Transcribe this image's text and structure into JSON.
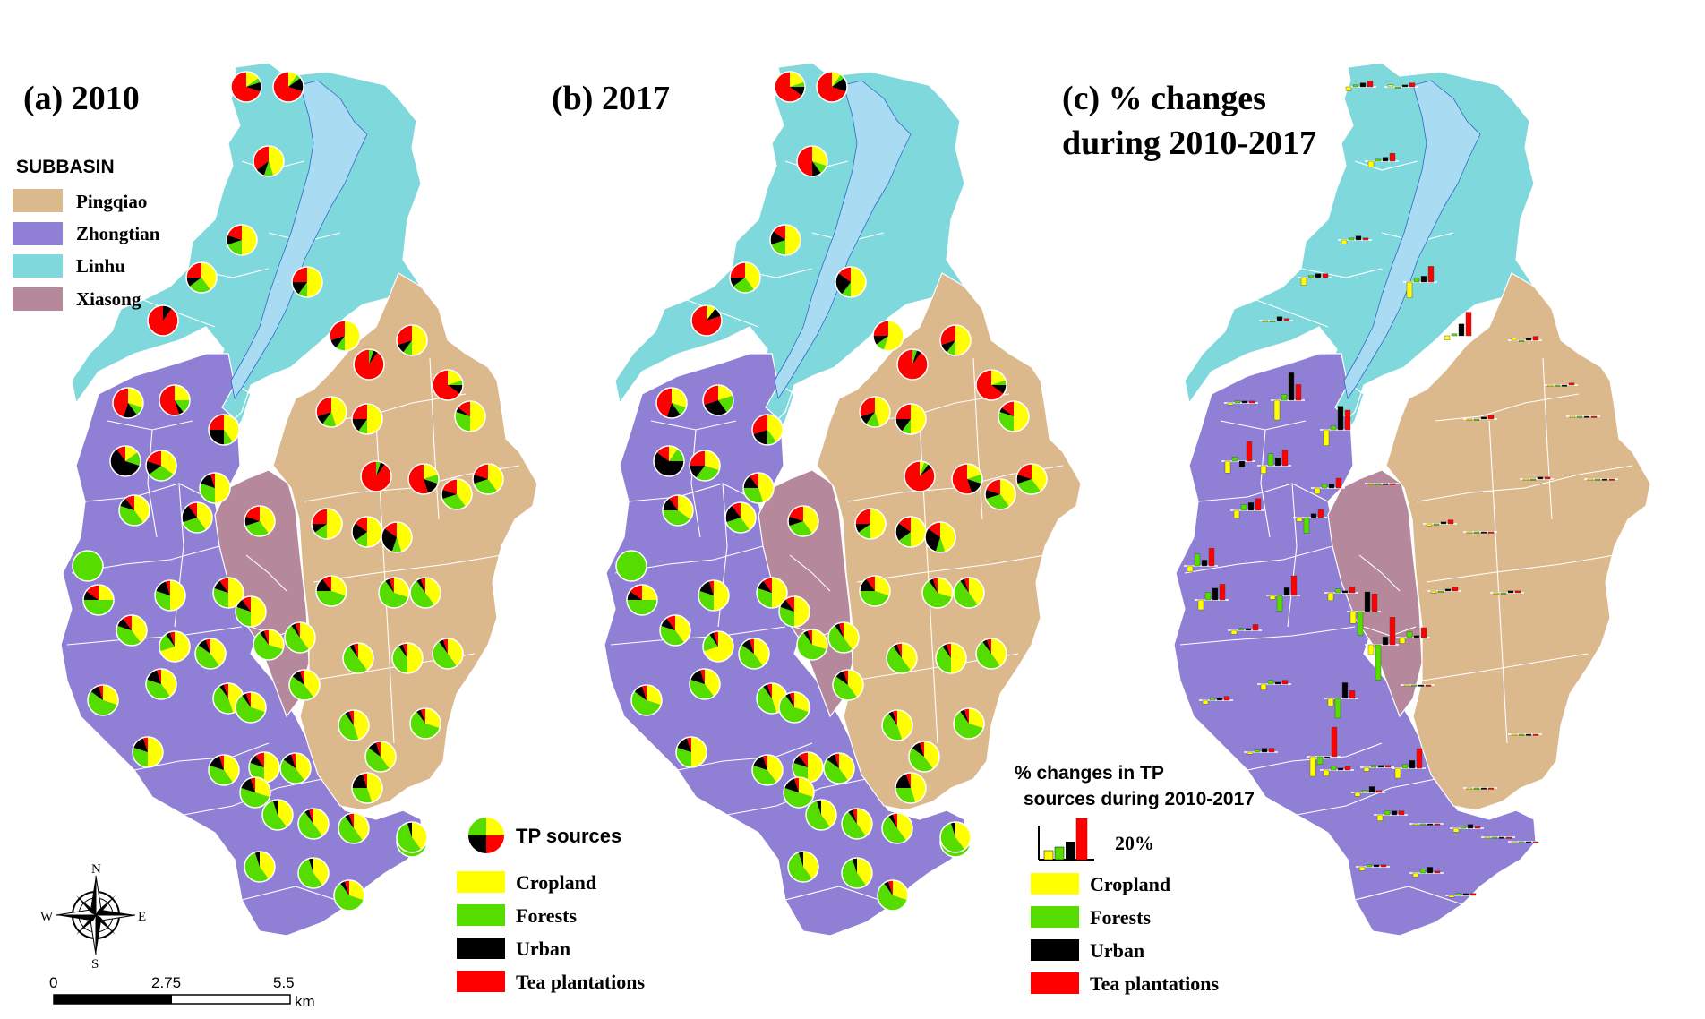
{
  "panels": [
    {
      "id": "a",
      "title_line1": "(a) 2010",
      "title_line2": ""
    },
    {
      "id": "b",
      "title_line1": "(b) 2017",
      "title_line2": ""
    },
    {
      "id": "c",
      "title_line1": "(c) % changes",
      "title_line2": "during 2010-2017"
    }
  ],
  "subbasin_legend": {
    "title": "SUBBASIN",
    "items": [
      {
        "label": "Pingqiao",
        "color": "#dcb88d"
      },
      {
        "label": "Zhongtian",
        "color": "#8f80d6"
      },
      {
        "label": "Linhu",
        "color": "#7fd8dc"
      },
      {
        "label": "Xiasong",
        "color": "#b5899b"
      }
    ]
  },
  "river_color": "#a9dcf2",
  "tp_legend": {
    "title": "TP sources",
    "items": [
      {
        "label": "Cropland",
        "color": "#ffff00"
      },
      {
        "label": "Forests",
        "color": "#55dd00"
      },
      {
        "label": "Urban",
        "color": "#000000"
      },
      {
        "label": "Tea plantations",
        "color": "#ff0000"
      }
    ]
  },
  "change_legend": {
    "title_line1": "% changes in TP",
    "title_line2": "sources during 2010-2017",
    "scale_label": "20%",
    "items": [
      {
        "label": "Cropland",
        "color": "#ffff00"
      },
      {
        "label": "Forests",
        "color": "#55dd00"
      },
      {
        "label": "Urban",
        "color": "#000000"
      },
      {
        "label": "Tea plantations",
        "color": "#ff0000"
      }
    ]
  },
  "north_arrow": {
    "n": "N",
    "s": "S",
    "e": "E",
    "w": "W"
  },
  "scale_bar": {
    "ticks": [
      "0",
      "2.75",
      "5.5"
    ],
    "unit": "km"
  }
}
